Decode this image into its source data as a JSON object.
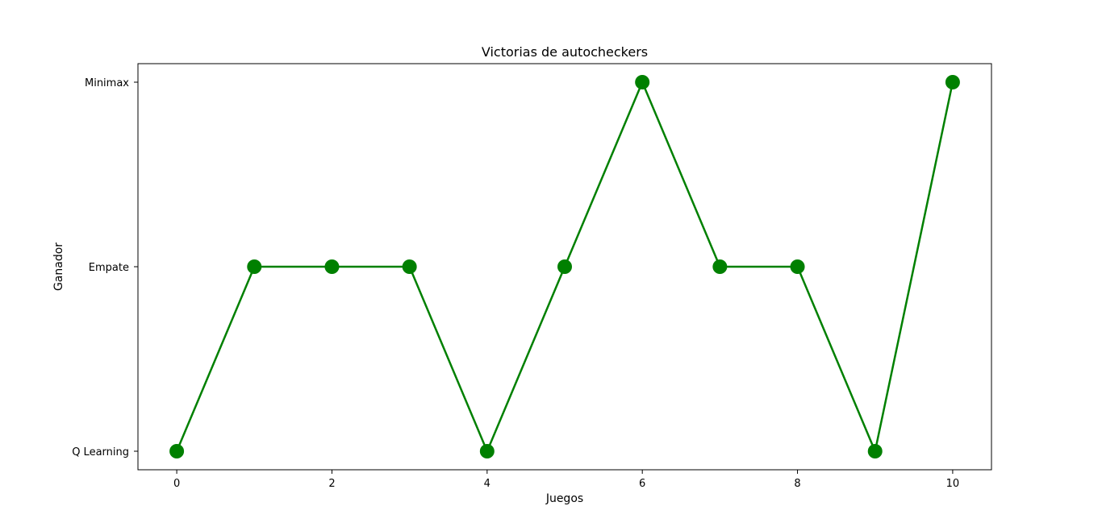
{
  "chart_data": {
    "type": "line",
    "title": "Victorias de autocheckers",
    "xlabel": "Juegos",
    "ylabel": "Ganador",
    "x": [
      0,
      1,
      2,
      3,
      4,
      5,
      6,
      7,
      8,
      9,
      10
    ],
    "xticks": [
      0,
      2,
      4,
      6,
      8,
      10
    ],
    "xlim": [
      -0.5,
      10.5
    ],
    "categories_y": [
      "Q Learning",
      "Empate",
      "Minimax"
    ],
    "series": [
      {
        "values": [
          "Q Learning",
          "Empate",
          "Empate",
          "Empate",
          "Q Learning",
          "Empate",
          "Minimax",
          "Empate",
          "Empate",
          "Q Learning",
          "Minimax"
        ],
        "color": "#008000",
        "marker": "circle"
      }
    ],
    "grid": false,
    "legend": "none"
  }
}
